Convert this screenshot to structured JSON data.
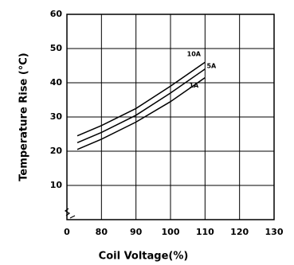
{
  "chart_data": {
    "type": "line",
    "xlabel": "Coil Voltage(%)",
    "ylabel": "Temperature Rise (°C)",
    "x": [
      73,
      80,
      90,
      100,
      110
    ],
    "series": [
      {
        "name": "10A",
        "color": "#000000",
        "values": [
          24.5,
          27.5,
          32.5,
          39,
          46
        ]
      },
      {
        "name": "5A",
        "color": "#000000",
        "values": [
          22.5,
          25.5,
          30.5,
          37,
          44
        ]
      },
      {
        "name": "1A",
        "color": "#000000",
        "values": [
          20.5,
          23.5,
          28.5,
          34.5,
          41.5
        ]
      }
    ],
    "xlim": [
      70,
      130
    ],
    "xticks": [
      {
        "value": 70,
        "label": "0"
      },
      80,
      90,
      100,
      110,
      120,
      130
    ],
    "ylim": [
      0,
      60
    ],
    "yticks": [
      10,
      20,
      30,
      40,
      50,
      60
    ],
    "grid": true
  }
}
